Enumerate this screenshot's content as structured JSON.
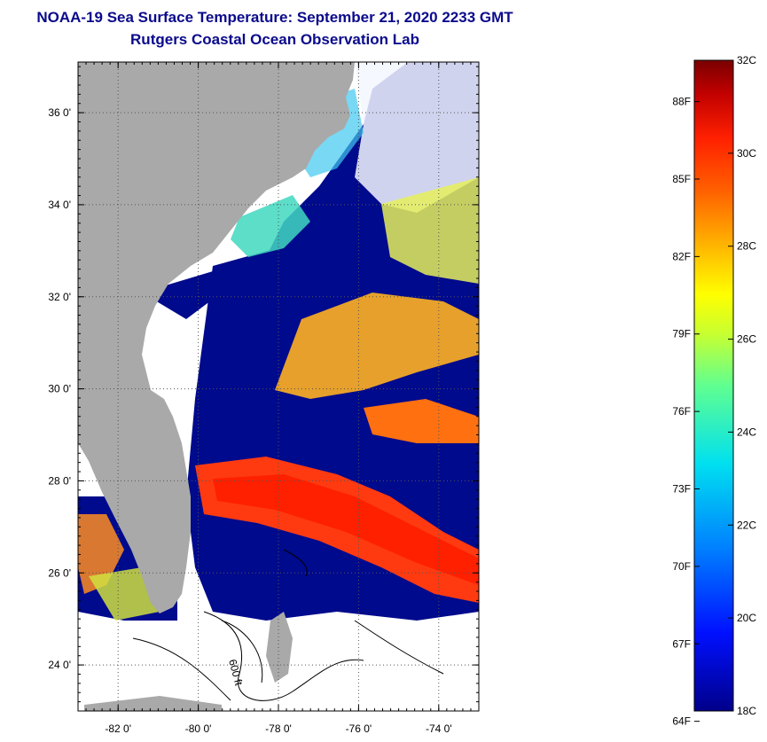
{
  "title_line1": "NOAA-19 Sea Surface Temperature:  September 21, 2020 2233 GMT",
  "title_line2": "Rutgers Coastal Ocean Observation Lab",
  "map": {
    "lat_labels": [
      "36 0'",
      "34 0'",
      "32 0'",
      "30 0'",
      "28 0'",
      "26 0'",
      "24 0'"
    ],
    "lat_values": [
      36,
      34,
      32,
      30,
      28,
      26,
      24
    ],
    "lon_labels": [
      "-82 0'",
      "-80 0'",
      "-78 0'",
      "-76 0'",
      "-74 0'"
    ],
    "lon_values": [
      -82,
      -80,
      -78,
      -76,
      -74
    ],
    "lat_range": [
      23,
      37.1
    ],
    "lon_range": [
      -83,
      -73
    ],
    "contour_label": "600 ft"
  },
  "colorbar": {
    "fahrenheit_labels": [
      "88F",
      "85F",
      "82F",
      "79F",
      "76F",
      "73F",
      "70F",
      "67F",
      "64F"
    ],
    "celsius_labels": [
      "32C",
      "30C",
      "28C",
      "26C",
      "24C",
      "22C",
      "20C",
      "18C"
    ],
    "min_c": 18,
    "max_c": 32
  },
  "colors": {
    "title": "#0a0a8c",
    "land": "#a9a9a9",
    "cold_water": "#000a8c"
  }
}
